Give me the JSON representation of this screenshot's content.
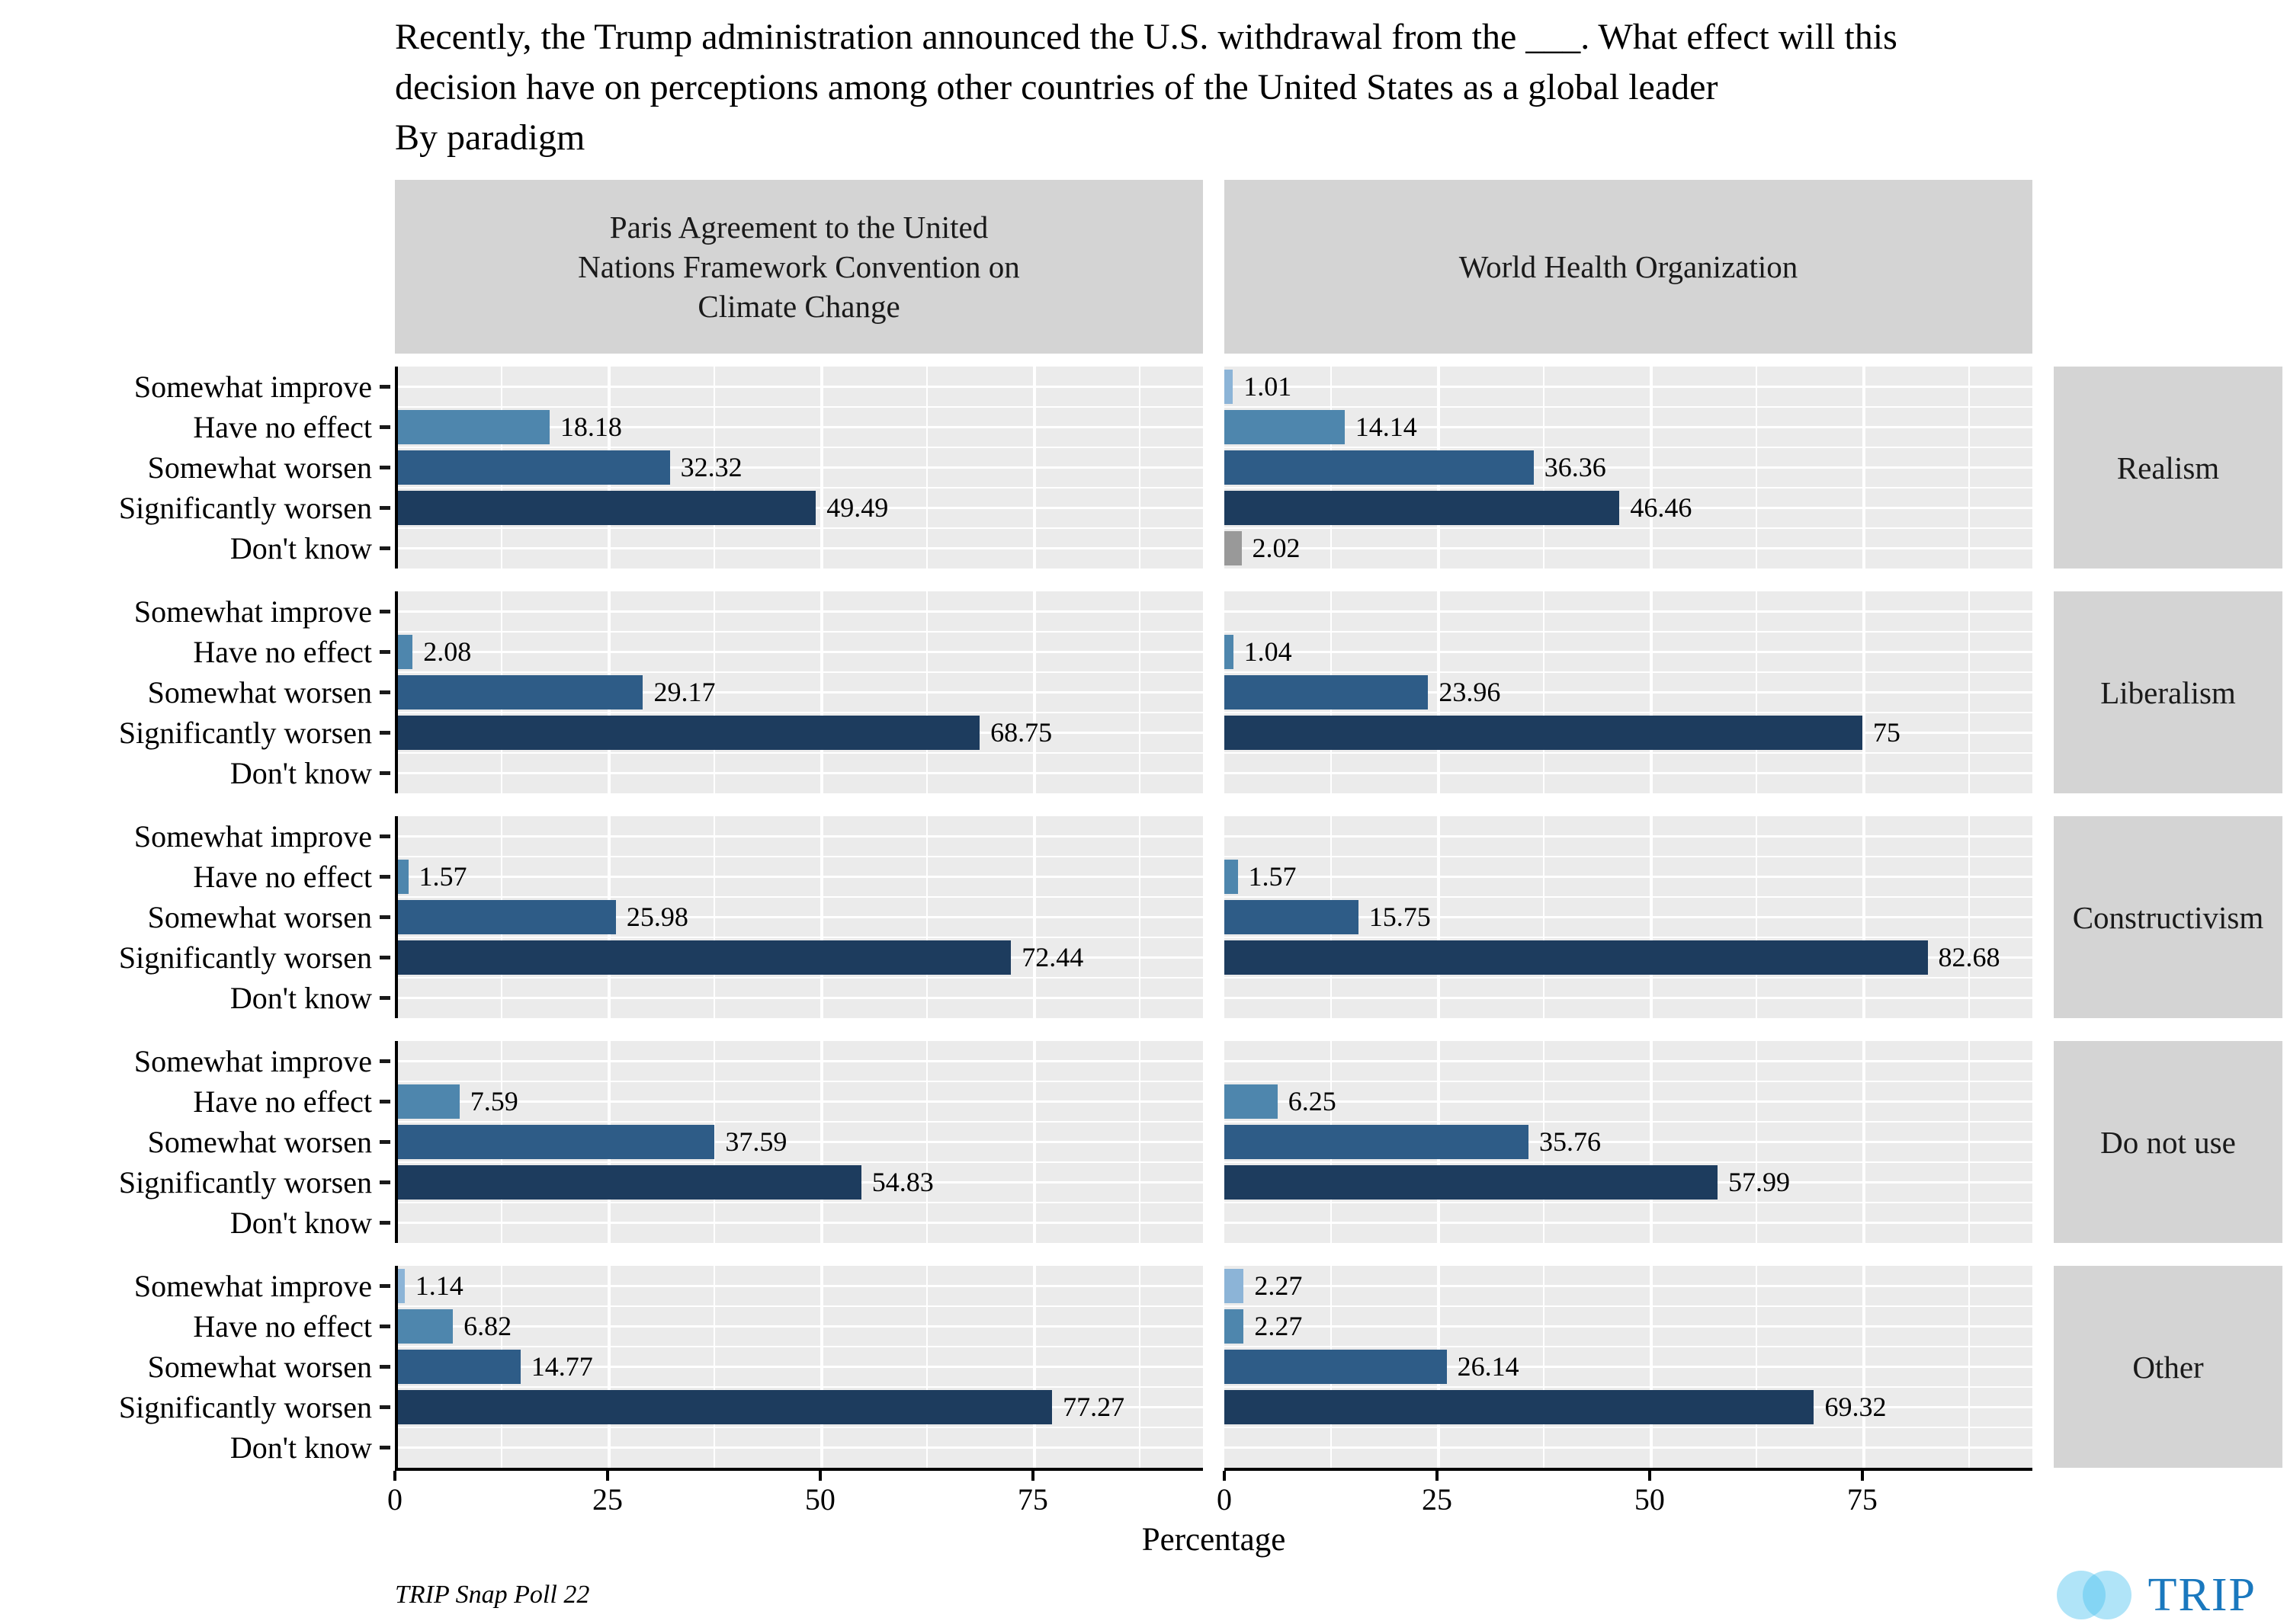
{
  "title": {
    "lines": [
      "Recently, the Trump administration announced the U.S. withdrawal from the ___. What effect will this",
      "decision have on perceptions among other countries of the United States as a global leader",
      "By paradigm"
    ]
  },
  "chart_data": {
    "type": "bar",
    "orientation": "horizontal",
    "title": "Recently, the Trump administration announced the U.S. withdrawal from the ___. What effect will this decision have on perceptions among other countries of the United States as a global leader",
    "subtitle": "By paradigm",
    "xlabel": "Percentage",
    "x_ticks": [
      0,
      25,
      50,
      75
    ],
    "xlim": [
      0,
      95
    ],
    "grid": {
      "major": [
        25,
        50,
        75
      ],
      "minor": [
        12.5,
        37.5,
        62.5,
        87.5
      ]
    },
    "categories": [
      "Somewhat improve",
      "Have no effect",
      "Somewhat worsen",
      "Significantly worsen",
      "Don't know"
    ],
    "category_colors": {
      "Somewhat improve": "#8cb4d7",
      "Have no effect": "#4e86ad",
      "Somewhat worsen": "#2e5c87",
      "Significantly worsen": "#1d3c5e",
      "Don't know": "#999999"
    },
    "column_facets": [
      "Paris Agreement to the United Nations Framework Convention on Climate Change",
      "World Health Organization"
    ],
    "row_facets": [
      {
        "label": "Realism",
        "series": [
          {
            "column": 0,
            "values": [
              null,
              18.18,
              32.32,
              49.49,
              null
            ]
          },
          {
            "column": 1,
            "values": [
              1.01,
              14.14,
              36.36,
              46.46,
              2.02
            ]
          }
        ]
      },
      {
        "label": "Liberalism",
        "series": [
          {
            "column": 0,
            "values": [
              null,
              2.08,
              29.17,
              68.75,
              null
            ]
          },
          {
            "column": 1,
            "values": [
              null,
              1.04,
              23.96,
              75,
              null
            ]
          }
        ]
      },
      {
        "label": "Constructivism",
        "series": [
          {
            "column": 0,
            "values": [
              null,
              1.57,
              25.98,
              72.44,
              null
            ]
          },
          {
            "column": 1,
            "values": [
              null,
              1.57,
              15.75,
              82.68,
              null
            ]
          }
        ]
      },
      {
        "label": "Do not use",
        "series": [
          {
            "column": 0,
            "values": [
              null,
              7.59,
              37.59,
              54.83,
              null
            ]
          },
          {
            "column": 1,
            "values": [
              null,
              6.25,
              35.76,
              57.99,
              null
            ]
          }
        ]
      },
      {
        "label": "Other",
        "series": [
          {
            "column": 0,
            "values": [
              1.14,
              6.82,
              14.77,
              77.27,
              null
            ]
          },
          {
            "column": 1,
            "values": [
              2.27,
              2.27,
              26.14,
              69.32,
              null
            ]
          }
        ]
      }
    ]
  },
  "footer": {
    "source": "TRIP Snap Poll 22",
    "logo_text": "TRIP"
  },
  "colors": {
    "panel_bg": "#ebebeb",
    "strip_bg": "#d4d4d4",
    "gridline": "#ffffff",
    "axis_line": "#000000",
    "bar_value_text": "#000000",
    "logo_blue": "#1a78be",
    "logo_circle": "#4fc3f0"
  }
}
